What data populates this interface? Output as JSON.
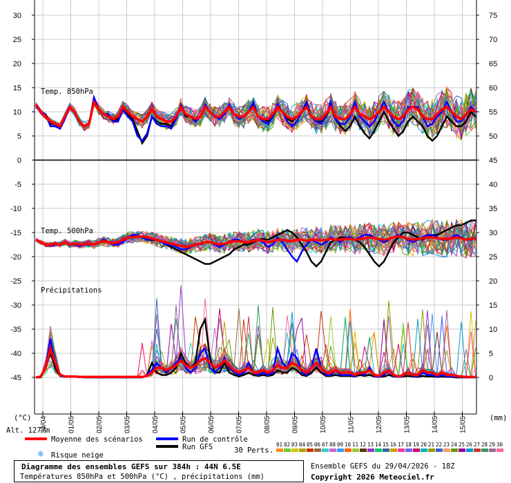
{
  "chart_data": {
    "type": "line",
    "title": "Diagramme des ensembles GEFS sur 384h : 44N 6.5E",
    "subtitle": "Températures 850hPa et 500hPa (°C) , précipitations (mm)",
    "left_axis_unit": "(°C)",
    "right_axis_unit": "(mm)",
    "altitude_label": "Alt. 1277m",
    "left_ticks": [
      30,
      25,
      20,
      15,
      10,
      5,
      0,
      -5,
      -10,
      -15,
      -20,
      -25,
      -30,
      -35,
      -40,
      -45
    ],
    "right_ticks": [
      75,
      70,
      65,
      60,
      55,
      50,
      45,
      40,
      35,
      30,
      25,
      20,
      15,
      10,
      5,
      0
    ],
    "x_ticks": [
      "30/04",
      "01/05",
      "02/05",
      "03/05",
      "04/05",
      "05/05",
      "06/05",
      "07/05",
      "08/05",
      "09/05",
      "10/05",
      "11/05",
      "12/05",
      "13/05",
      "14/05",
      "15/05"
    ],
    "grid": true,
    "panels": {
      "t850_label": "Temp. 850hPa",
      "t500_label": "Temp. 500hPa",
      "precip_label": "Précipitations"
    },
    "mean_t850": [
      11.5,
      10,
      9,
      8,
      7.5,
      7,
      9,
      11,
      10,
      8,
      7,
      7.5,
      12,
      10.5,
      9.5,
      9,
      8.5,
      9,
      11,
      10,
      9,
      8.5,
      8,
      9,
      10.5,
      9,
      8.5,
      8,
      8,
      9,
      11,
      9.5,
      9,
      8.5,
      9,
      11,
      10,
      9,
      9,
      10,
      11,
      9.5,
      9,
      9,
      10,
      11,
      9,
      8.5,
      8.5,
      9.5,
      11,
      10,
      9,
      8.5,
      9,
      10,
      11,
      9,
      8.5,
      8.5,
      9.5,
      11,
      9,
      8.5,
      8.5,
      9.5,
      11,
      9.5,
      9,
      8.5,
      9,
      10,
      11,
      10,
      9,
      8.5,
      9,
      10.5,
      11,
      10.5,
      9,
      8.5,
      8.5,
      9.5,
      10.5,
      11,
      10,
      9,
      8.5,
      9.5,
      10.5,
      10
    ],
    "mean_t500": [
      -16.5,
      -17,
      -17.5,
      -17.5,
      -17.3,
      -17.5,
      -17,
      -17.5,
      -17.3,
      -17.5,
      -17.4,
      -17.3,
      -17.5,
      -17,
      -16.8,
      -17,
      -17.2,
      -17,
      -16.5,
      -16,
      -16,
      -15.8,
      -15.8,
      -16,
      -16.2,
      -16.5,
      -16.8,
      -17,
      -17.3,
      -17.5,
      -17.8,
      -18,
      -17.8,
      -17.5,
      -17.3,
      -17,
      -17,
      -17.2,
      -17.5,
      -17.3,
      -17,
      -16.8,
      -16.8,
      -17,
      -17,
      -16.7,
      -16.5,
      -16.7,
      -17,
      -16.8,
      -16.5,
      -16.5,
      -16.7,
      -16.8,
      -16.5,
      -16.5,
      -16.7,
      -16.5,
      -16.5,
      -16.7,
      -16.5,
      -16.3,
      -16.5,
      -16.5,
      -16.3,
      -16.3,
      -16.5,
      -16.3,
      -16.2,
      -16,
      -16.2,
      -16.3,
      -16.5,
      -16.3,
      -16,
      -15.8,
      -16,
      -16.3,
      -16.5,
      -16.3,
      -16.2,
      -16,
      -16,
      -16.2,
      -16.3,
      -16.3,
      -16.2,
      -16,
      -16.2,
      -16.5,
      -16.3,
      -16.2
    ],
    "mean_precip": [
      0,
      0.2,
      2,
      6,
      3,
      0.5,
      0.2,
      0.2,
      0.2,
      0.1,
      0.1,
      0.1,
      0.1,
      0.1,
      0.1,
      0.1,
      0.1,
      0.1,
      0.1,
      0.1,
      0.1,
      0.1,
      0.1,
      0.3,
      1,
      2,
      2,
      1.5,
      2,
      2.5,
      3.5,
      2.5,
      2,
      2.5,
      3.5,
      4,
      3,
      2,
      2.5,
      3.5,
      2.5,
      1.5,
      1,
      1.5,
      2,
      1,
      1,
      1.5,
      1,
      1.5,
      2.5,
      2,
      2,
      3,
      2.5,
      1.5,
      1,
      2,
      3,
      2,
      1,
      1,
      1.5,
      1,
      1,
      1,
      0.5,
      1,
      1,
      1.5,
      0.5,
      0.3,
      1,
      1.5,
      0.5,
      0.2,
      0.5,
      1,
      0.5,
      0.5,
      1.5,
      1,
      1,
      0.5,
      1,
      0.5,
      0.5,
      0.3,
      0.2,
      0.1,
      0.1,
      0.1
    ],
    "control_t850": [
      11,
      10,
      9.5,
      7,
      7,
      6.5,
      8.5,
      11,
      10,
      8,
      7,
      7.5,
      13,
      10.5,
      9.5,
      9.5,
      8,
      8,
      10.5,
      9,
      8,
      5,
      4,
      5.5,
      9,
      7.5,
      7,
      7,
      6.5,
      8.5,
      11.5,
      9.5,
      9,
      8,
      9,
      11.5,
      10,
      9,
      8.5,
      9.5,
      11.5,
      9.5,
      8.5,
      9,
      10,
      12,
      9,
      8,
      7.5,
      9,
      11.5,
      10,
      8,
      7,
      8,
      10,
      12,
      9,
      8,
      7.5,
      9,
      12,
      8.5,
      7.5,
      7.5,
      9,
      12,
      9,
      8,
      7,
      8,
      10,
      12,
      10,
      8,
      7,
      8,
      11,
      11,
      11,
      9,
      7,
      7.5,
      9,
      10,
      12,
      10,
      8,
      8,
      9.5,
      11,
      10
    ],
    "control_t500": [
      -16.5,
      -17,
      -17.5,
      -17.7,
      -17.5,
      -17.5,
      -17,
      -17.5,
      -17.5,
      -17.8,
      -17.5,
      -17.5,
      -17.5,
      -17,
      -16.5,
      -17,
      -17.5,
      -17.5,
      -17,
      -16,
      -15.5,
      -15.5,
      -16,
      -16.5,
      -16.3,
      -16.5,
      -17,
      -17.5,
      -17.5,
      -18,
      -18.5,
      -18.5,
      -18,
      -17.5,
      -17.5,
      -17,
      -17,
      -17.5,
      -18,
      -17.5,
      -17,
      -16.5,
      -16.5,
      -17,
      -17,
      -16.5,
      -16.5,
      -17,
      -18,
      -17.5,
      -16,
      -17,
      -18.5,
      -20,
      -21,
      -19,
      -17.5,
      -16.5,
      -17,
      -17.5,
      -17,
      -16,
      -16.5,
      -17,
      -16,
      -16,
      -16.5,
      -16,
      -15.5,
      -15.5,
      -16,
      -16.5,
      -17,
      -16.5,
      -16,
      -15.5,
      -16,
      -16.5,
      -17,
      -16.5,
      -16,
      -15.5,
      -15.5,
      -16,
      -16.5,
      -16.5,
      -16,
      -15.5,
      -16,
      -16.5,
      -16.5,
      -16
    ],
    "control_precip": [
      0,
      0.2,
      2,
      8,
      3,
      0.3,
      0.1,
      0.1,
      0.1,
      0.1,
      0,
      0,
      0,
      0,
      0,
      0,
      0,
      0,
      0,
      0,
      0,
      0,
      0,
      0.5,
      1.5,
      3,
      2,
      1,
      2,
      3,
      4,
      2,
      1,
      2,
      5,
      6,
      2,
      1,
      2,
      4,
      2,
      1,
      0.5,
      1,
      3,
      1,
      0.5,
      1,
      0.5,
      1,
      6,
      3,
      2,
      5,
      4,
      1,
      0.5,
      2,
      6,
      2,
      0.5,
      0.5,
      1.5,
      0.5,
      0.5,
      0.5,
      0.2,
      1,
      0.5,
      2,
      0.2,
      0.1,
      0.5,
      1.5,
      0.2,
      0.1,
      0.3,
      1,
      0.3,
      0.2,
      1,
      0.5,
      0.5,
      0.2,
      0.5,
      0.2,
      0.2,
      0.1,
      0.1,
      0,
      0,
      0
    ],
    "gfs_t850": [
      11.5,
      10,
      9.5,
      7.5,
      7.5,
      7,
      9,
      11,
      10,
      8,
      7,
      7.5,
      12.5,
      10.5,
      9.5,
      9,
      8,
      8.5,
      11,
      9.5,
      8.5,
      6,
      3.5,
      5,
      9,
      8,
      7.5,
      7.5,
      7,
      9,
      11,
      9,
      9,
      8,
      9,
      11,
      10,
      9,
      9,
      10,
      11,
      9.5,
      9,
      9,
      10,
      11.5,
      9,
      8.5,
      8,
      9,
      11,
      10,
      8.5,
      8,
      9,
      10,
      11.5,
      9,
      8,
      8,
      9,
      11,
      8.5,
      7,
      6,
      7,
      9,
      7,
      5.5,
      4.5,
      6,
      8,
      10,
      8,
      6.5,
      5,
      6,
      8,
      9,
      8,
      7,
      5,
      4,
      5,
      7,
      9,
      8,
      7,
      7,
      8,
      10,
      9
    ],
    "gfs_t500": [
      -16.5,
      -17,
      -17.5,
      -17.5,
      -17.3,
      -17.5,
      -17,
      -17.5,
      -17.3,
      -17.5,
      -17.4,
      -17.3,
      -17.5,
      -17,
      -16.8,
      -17,
      -17.2,
      -17,
      -16.5,
      -16,
      -15.8,
      -15.8,
      -16,
      -16.5,
      -16.5,
      -16.5,
      -17,
      -17.5,
      -18,
      -18.5,
      -19,
      -19.5,
      -20,
      -20.5,
      -21,
      -21.5,
      -21.5,
      -21,
      -20.5,
      -20,
      -19.5,
      -18.5,
      -18,
      -17.5,
      -17.5,
      -17,
      -16.5,
      -16.3,
      -16.5,
      -16,
      -15.5,
      -15,
      -14.5,
      -15,
      -16,
      -17.5,
      -19,
      -21,
      -22,
      -21,
      -19,
      -17,
      -16.5,
      -16,
      -16,
      -16,
      -16.5,
      -17,
      -18,
      -19.5,
      -21,
      -22,
      -21,
      -19,
      -17,
      -16,
      -15,
      -15,
      -15.5,
      -16,
      -16.5,
      -16,
      -15.5,
      -15.5,
      -15,
      -14.5,
      -14,
      -13.5,
      -13.5,
      -13,
      -12.5,
      -12.5
    ],
    "gfs_precip": [
      0,
      0,
      2,
      5,
      2,
      0.3,
      0.1,
      0.1,
      0.1,
      0.1,
      0,
      0,
      0,
      0,
      0,
      0,
      0,
      0,
      0,
      0,
      0,
      0,
      0,
      0.5,
      3,
      1,
      0.5,
      0.5,
      1,
      2,
      5,
      3,
      2,
      3,
      10,
      12,
      4,
      1,
      1,
      3,
      1,
      0.5,
      0.2,
      0.5,
      1,
      0.5,
      0.3,
      0.5,
      0.3,
      0.5,
      1.5,
      1,
      1,
      2,
      1.5,
      0.5,
      0.3,
      1,
      2,
      1,
      0.3,
      0.3,
      0.5,
      0.3,
      0.3,
      0.3,
      0.2,
      0.5,
      0.3,
      0.5,
      0.2,
      0.1,
      0.2,
      0.5,
      0.2,
      0.1,
      0.2,
      0.3,
      0.2,
      0.1,
      0.3,
      0.2,
      0.2,
      0.1,
      0.2,
      0.1,
      0.1,
      0,
      0,
      0,
      0,
      0
    ]
  },
  "legend": {
    "mean": "Moyenne des scénarios",
    "control": "Run de contrôle",
    "gfs": "Run GFS",
    "snow": "Risque neige",
    "perts": "30 Perts.",
    "pert_numbers": [
      "01",
      "02",
      "03",
      "04",
      "05",
      "06",
      "07",
      "08",
      "09",
      "10",
      "11",
      "12",
      "13",
      "14",
      "15",
      "16",
      "17",
      "18",
      "19",
      "20",
      "21",
      "22",
      "23",
      "24",
      "25",
      "26",
      "27",
      "28",
      "29",
      "30"
    ],
    "colors": {
      "mean": "#ff0000",
      "control": "#0000ff",
      "gfs": "#000000",
      "snow": "#3399ff"
    },
    "pert_colors": [
      "#ff8c1a",
      "#66cc33",
      "#d4c400",
      "#b5a000",
      "#cc3300",
      "#996633",
      "#33cccc",
      "#cc66cc",
      "#3399ff",
      "#ff6600",
      "#99cc33",
      "#663300",
      "#9933cc",
      "#00cc66",
      "#336699",
      "#cc9900",
      "#ff3399",
      "#6666ff",
      "#cc0066",
      "#00b3b3",
      "#999900",
      "#3366cc",
      "#ff9966",
      "#669900",
      "#990099",
      "#0099cc",
      "#cc3333",
      "#339966",
      "#996699",
      "#ff6699"
    ]
  },
  "footer": {
    "title": "Diagramme des ensembles GEFS sur 384h : 44N 6.5E",
    "subtitle": "Températures 850hPa et 500hPa (°C) , précipitations (mm)",
    "source": "Ensemble GEFS du 29/04/2026 - 18Z",
    "copyright": "Copyright 2026 Meteociel.fr"
  }
}
